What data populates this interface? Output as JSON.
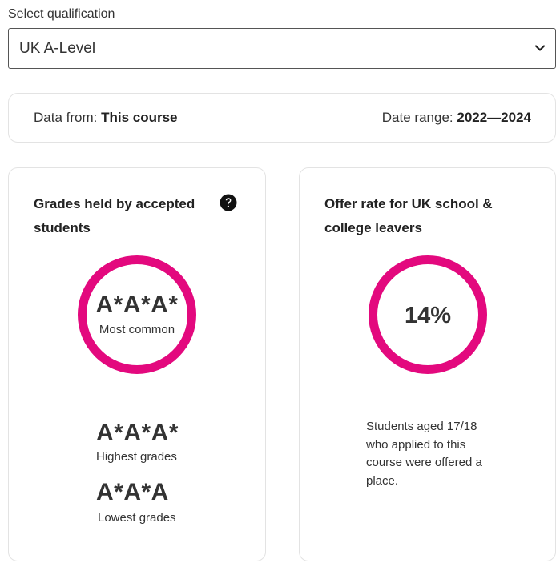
{
  "qualification": {
    "label": "Select qualification",
    "selected": "UK A-Level"
  },
  "info_bar": {
    "data_from_label": "Data from:",
    "data_from_value": "This course",
    "date_range_label": "Date range:",
    "date_range_value": "2022—2024"
  },
  "grades_card": {
    "title": "Grades held by accepted students",
    "most_common_value": "A*A*A*",
    "most_common_label": "Most common",
    "highest_value": "A*A*A*",
    "highest_label": "Highest grades",
    "lowest_value": "A*A*A",
    "lowest_label": "Lowest grades",
    "help_icon": "question-circle-icon"
  },
  "offer_card": {
    "title": "Offer rate for UK school & college leavers",
    "rate_value": "14%",
    "description": "Students aged 17/18 who applied to this course were offered a place."
  },
  "colors": {
    "accent": "#e3097e",
    "border": "#e3e3e3"
  }
}
